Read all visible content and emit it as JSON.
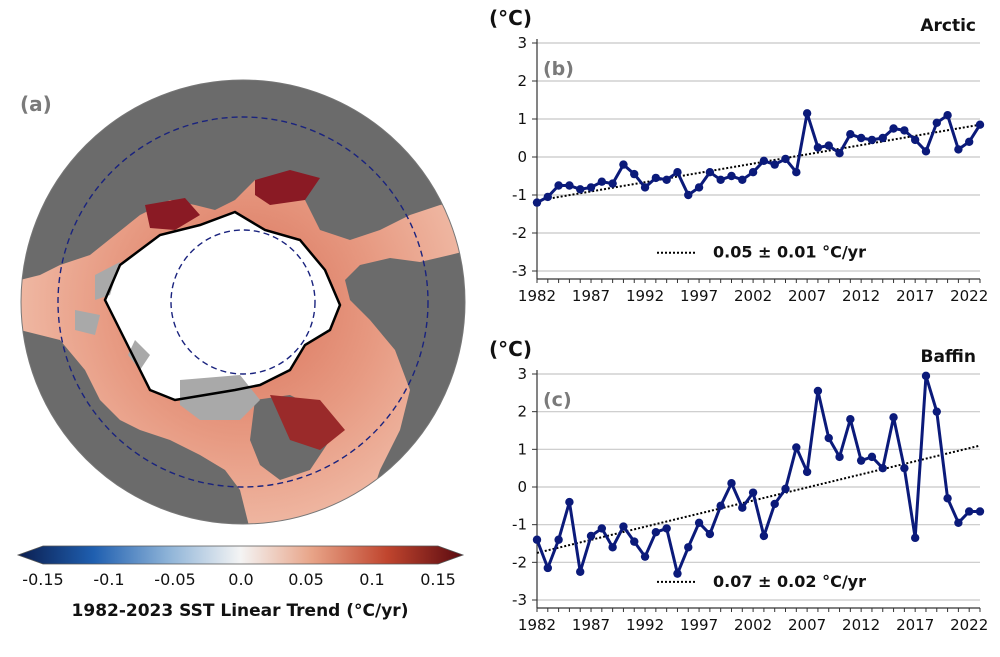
{
  "map_panel": {
    "panel_label": "(a)",
    "colorbar": {
      "ticks": [
        "-0.15",
        "-0.1",
        "-0.05",
        "0.0",
        "0.05",
        "0.1",
        "0.15"
      ],
      "label": "1982-2023 SST Linear Trend (°C/yr)",
      "colors": [
        "#0b1e4f",
        "#1f5fb0",
        "#8fb4d8",
        "#f4f4f4",
        "#e8a488",
        "#c0452e",
        "#5a0a10"
      ]
    },
    "colors": {
      "land": "#6b6b6b",
      "ice": "#ffffff",
      "mask": "#a9a9a9",
      "circle_dash": "#1a237e"
    }
  },
  "chart_data": [
    {
      "type": "line",
      "panel_label": "(b)",
      "unit_label": "(°C)",
      "title": "Arctic",
      "x": [
        1982,
        1983,
        1984,
        1985,
        1986,
        1987,
        1988,
        1989,
        1990,
        1991,
        1992,
        1993,
        1994,
        1995,
        1996,
        1997,
        1998,
        1999,
        2000,
        2001,
        2002,
        2003,
        2004,
        2005,
        2006,
        2007,
        2008,
        2009,
        2010,
        2011,
        2012,
        2013,
        2014,
        2015,
        2016,
        2017,
        2018,
        2019,
        2020,
        2021,
        2022,
        2023
      ],
      "values": [
        -1.2,
        -1.05,
        -0.75,
        -0.75,
        -0.85,
        -0.8,
        -0.65,
        -0.7,
        -0.2,
        -0.45,
        -0.8,
        -0.55,
        -0.6,
        -0.4,
        -1.0,
        -0.8,
        -0.4,
        -0.6,
        -0.5,
        -0.6,
        -0.4,
        -0.1,
        -0.2,
        -0.05,
        -0.4,
        1.15,
        0.25,
        0.3,
        0.1,
        0.6,
        0.5,
        0.45,
        0.5,
        0.75,
        0.7,
        0.45,
        0.15,
        0.9,
        1.1,
        0.2,
        0.4,
        0.85
      ],
      "trend": {
        "start": -1.15,
        "end": 0.85
      },
      "trend_label": "0.05 ± 0.01 °C/yr",
      "xticks": [
        "1982",
        "1987",
        "1992",
        "1997",
        "2002",
        "2007",
        "2012",
        "2017",
        "2022"
      ],
      "yticks": [
        "3",
        "2",
        "1",
        "0",
        "-1",
        "-2",
        "-3"
      ],
      "ylim": [
        -3,
        3
      ],
      "line_color": "#0b1a7a"
    },
    {
      "type": "line",
      "panel_label": "(c)",
      "unit_label": "(°C)",
      "title": "Baffin",
      "x": [
        1982,
        1983,
        1984,
        1985,
        1986,
        1987,
        1988,
        1989,
        1990,
        1991,
        1992,
        1993,
        1994,
        1995,
        1996,
        1997,
        1998,
        1999,
        2000,
        2001,
        2002,
        2003,
        2004,
        2005,
        2006,
        2007,
        2008,
        2009,
        2010,
        2011,
        2012,
        2013,
        2014,
        2015,
        2016,
        2017,
        2018,
        2019,
        2020,
        2021,
        2022,
        2023
      ],
      "values": [
        -1.4,
        -2.15,
        -1.4,
        -0.4,
        -2.25,
        -1.3,
        -1.1,
        -1.6,
        -1.05,
        -1.45,
        -1.85,
        -1.2,
        -1.1,
        -2.3,
        -1.6,
        -0.95,
        -1.25,
        -0.5,
        0.1,
        -0.55,
        -0.15,
        -1.3,
        -0.45,
        -0.05,
        1.05,
        0.4,
        2.55,
        1.3,
        0.8,
        1.8,
        0.7,
        0.8,
        0.5,
        1.85,
        0.5,
        -1.35,
        2.95,
        2.0,
        -0.3,
        -0.95,
        -0.65,
        -0.65
      ],
      "trend": {
        "start": -1.75,
        "end": 1.1
      },
      "trend_label": "0.07 ± 0.02 °C/yr",
      "xticks": [
        "1982",
        "1987",
        "1992",
        "1997",
        "2002",
        "2007",
        "2012",
        "2017",
        "2022"
      ],
      "yticks": [
        "3",
        "2",
        "1",
        "0",
        "-1",
        "-2",
        "-3"
      ],
      "ylim": [
        -3,
        3
      ],
      "line_color": "#0b1a7a"
    }
  ]
}
